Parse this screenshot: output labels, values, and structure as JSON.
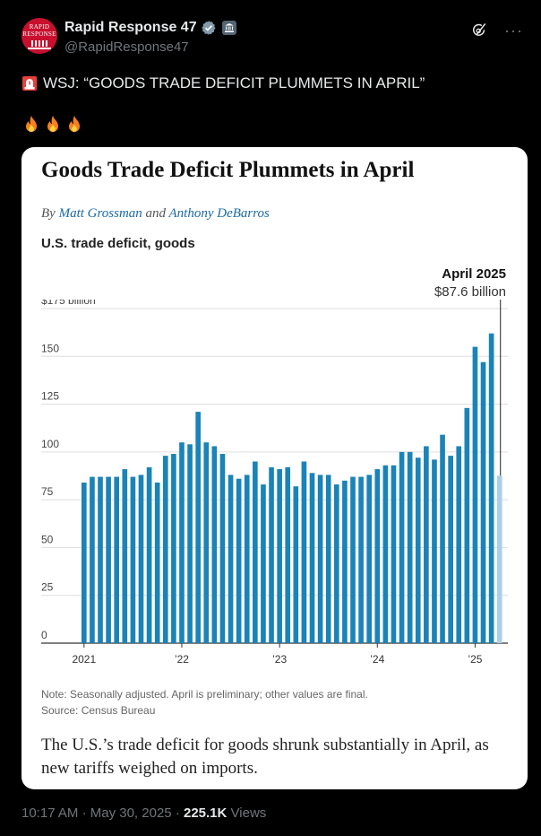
{
  "account": {
    "display_name": "Rapid Response 47",
    "handle": "@RapidResponse47",
    "avatar_text": "RAPID RESPONSE"
  },
  "tweet": {
    "text": "WSJ: “GOODS TRADE DEFICIT PLUMMETS IN APRIL”",
    "emoji_line": [
      "fire",
      "fire",
      "fire"
    ]
  },
  "card": {
    "title": "Goods Trade Deficit Plummets in April",
    "byline_prefix": "By",
    "author1": "Matt Grossman",
    "byline_and": "and",
    "author2": "Anthony DeBarros",
    "caption": "The U.S.’s trade deficit for goods shrunk substantially in April, as new tariffs weighed on imports.",
    "note_line1": "Note: Seasonally adjusted. April is preliminary; other values are final.",
    "note_line2": "Source: Census Bureau"
  },
  "chart_data": {
    "type": "bar",
    "title": "U.S. trade deficit, goods",
    "annotation": {
      "date": "April 2025",
      "value": "$87.6 billion"
    },
    "y_ticks": [
      "$175 billion",
      "150",
      "125",
      "100",
      "75",
      "50",
      "25",
      "0"
    ],
    "y_tick_values": [
      175,
      150,
      125,
      100,
      75,
      50,
      25,
      0
    ],
    "x_ticks": [
      {
        "label": "2021",
        "index": 0
      },
      {
        "label": "’22",
        "index": 12
      },
      {
        "label": "’23",
        "index": 24
      },
      {
        "label": "’24",
        "index": 36
      },
      {
        "label": "’25",
        "index": 48
      }
    ],
    "ylim": [
      0,
      175
    ],
    "grid": true,
    "highlight_color": "#a9cfea",
    "bar_color": "#1a83b8",
    "categories": [
      "2021-01",
      "2021-02",
      "2021-03",
      "2021-04",
      "2021-05",
      "2021-06",
      "2021-07",
      "2021-08",
      "2021-09",
      "2021-10",
      "2021-11",
      "2021-12",
      "2022-01",
      "2022-02",
      "2022-03",
      "2022-04",
      "2022-05",
      "2022-06",
      "2022-07",
      "2022-08",
      "2022-09",
      "2022-10",
      "2022-11",
      "2022-12",
      "2023-01",
      "2023-02",
      "2023-03",
      "2023-04",
      "2023-05",
      "2023-06",
      "2023-07",
      "2023-08",
      "2023-09",
      "2023-10",
      "2023-11",
      "2023-12",
      "2024-01",
      "2024-02",
      "2024-03",
      "2024-04",
      "2024-05",
      "2024-06",
      "2024-07",
      "2024-08",
      "2024-09",
      "2024-10",
      "2024-11",
      "2024-12",
      "2025-01",
      "2025-02",
      "2025-03",
      "2025-04"
    ],
    "values": [
      84,
      87,
      87,
      87,
      87,
      91,
      87,
      88,
      92,
      84,
      98,
      99,
      105,
      104,
      121,
      105,
      103,
      99,
      88,
      86,
      88,
      95,
      83,
      92,
      91,
      92,
      82,
      95,
      89,
      88,
      88,
      83,
      85,
      87,
      87,
      88,
      91,
      93,
      93,
      100,
      100,
      97,
      103,
      96,
      109,
      98,
      103,
      123,
      155,
      147,
      162,
      87.6
    ]
  },
  "footer": {
    "time": "10:17 AM",
    "separator": "·",
    "date": "May 30, 2025",
    "views_count": "225.1K",
    "views_label": "Views"
  }
}
